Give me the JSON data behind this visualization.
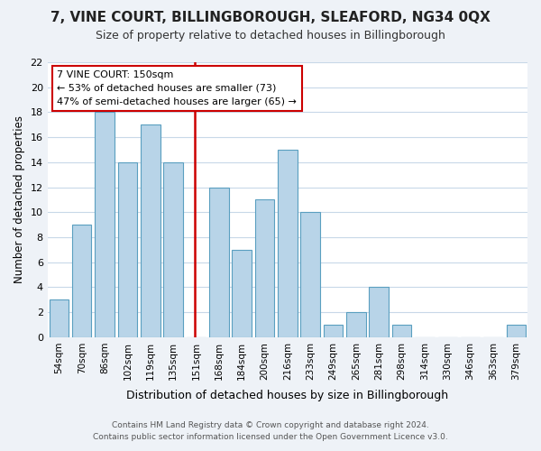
{
  "title": "7, VINE COURT, BILLINGBOROUGH, SLEAFORD, NG34 0QX",
  "subtitle": "Size of property relative to detached houses in Billingborough",
  "xlabel": "Distribution of detached houses by size in Billingborough",
  "ylabel": "Number of detached properties",
  "bar_labels": [
    "54sqm",
    "70sqm",
    "86sqm",
    "102sqm",
    "119sqm",
    "135sqm",
    "151sqm",
    "168sqm",
    "184sqm",
    "200sqm",
    "216sqm",
    "233sqm",
    "249sqm",
    "265sqm",
    "281sqm",
    "298sqm",
    "314sqm",
    "330sqm",
    "346sqm",
    "363sqm",
    "379sqm"
  ],
  "bar_values": [
    3,
    9,
    18,
    14,
    17,
    14,
    0,
    12,
    7,
    11,
    15,
    10,
    1,
    2,
    4,
    1,
    0,
    0,
    0,
    0,
    1
  ],
  "bar_color": "#b8d4e8",
  "bar_edge_color": "#5a9fc0",
  "reference_line_x": 6,
  "reference_line_color": "#cc0000",
  "annotation_title": "7 VINE COURT: 150sqm",
  "annotation_line1": "← 53% of detached houses are smaller (73)",
  "annotation_line2": "47% of semi-detached houses are larger (65) →",
  "annotation_box_color": "#ffffff",
  "annotation_box_edge": "#cc0000",
  "ylim": [
    0,
    22
  ],
  "yticks": [
    0,
    2,
    4,
    6,
    8,
    10,
    12,
    14,
    16,
    18,
    20,
    22
  ],
  "footnote1": "Contains HM Land Registry data © Crown copyright and database right 2024.",
  "footnote2": "Contains public sector information licensed under the Open Government Licence v3.0.",
  "bg_color": "#eef2f7",
  "plot_bg_color": "#ffffff",
  "grid_color": "#c8d8e8"
}
